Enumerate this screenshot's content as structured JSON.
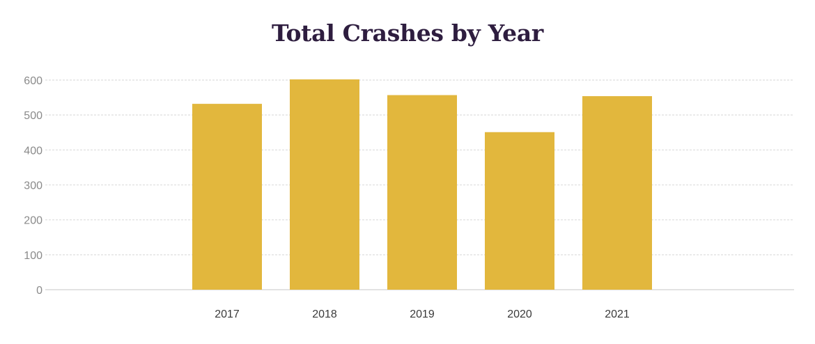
{
  "chart_data": {
    "type": "bar",
    "title": "Total Crashes by Year",
    "xlabel": "",
    "ylabel": "",
    "categories": [
      "2017",
      "2018",
      "2019",
      "2020",
      "2021"
    ],
    "values": [
      532,
      602,
      557,
      451,
      554
    ],
    "ylim": [
      0,
      600
    ],
    "yticks": [
      0,
      100,
      200,
      300,
      400,
      500,
      600
    ],
    "grid": true,
    "legend": "none",
    "bar_color": "#e2b73d",
    "grid_color": "#e4e4e4",
    "title_color": "#2e1d3f"
  }
}
